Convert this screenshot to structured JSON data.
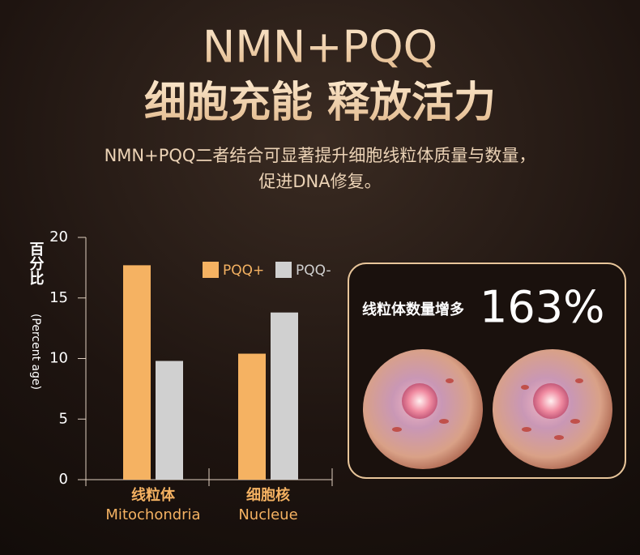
{
  "chart_data": {
    "type": "bar",
    "title": "NMN+PQQ",
    "subtitle": "细胞充能 释放活力",
    "description": [
      "NMN+PQQ二者结合可显著提升细胞线粒体质量与数量，",
      "促进DNA修复。"
    ],
    "categories": [
      "线粒体",
      "细胞核"
    ],
    "category_subtitles": [
      "Mitochondria",
      "Nucleue"
    ],
    "series": [
      {
        "name": "PQQ+",
        "color": "#f5b262",
        "values": [
          17.7,
          10.4
        ]
      },
      {
        "name": "PQQ-",
        "color": "#d0d0d0",
        "values": [
          9.8,
          13.8
        ]
      }
    ],
    "ylabel": "百分比",
    "ylabel_sub": "(Percent age)",
    "ylim": [
      0,
      20
    ],
    "yticks": [
      0,
      5,
      10,
      15,
      20
    ],
    "legend": "top-right",
    "annotation": {
      "text": "线粒体数量增多",
      "highlight": "163%"
    }
  }
}
